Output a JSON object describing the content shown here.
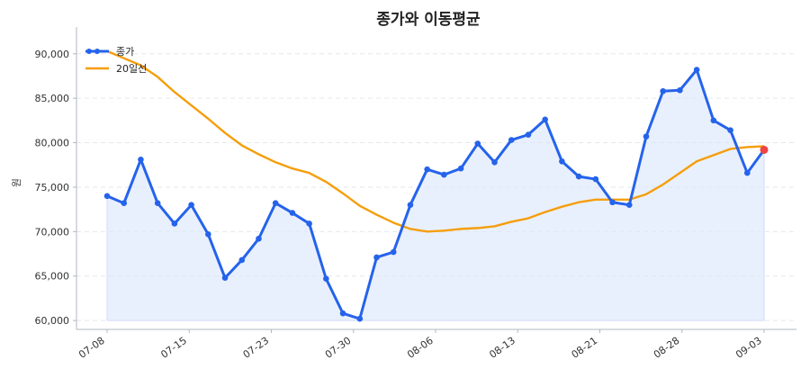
{
  "chart_data": {
    "type": "line",
    "title": "종가와 이동평균",
    "xlabel": "",
    "ylabel": "원",
    "ylim": [
      59000,
      92000
    ],
    "yticks": [
      "60,000",
      "65,000",
      "70,000",
      "75,000",
      "80,000",
      "85,000",
      "90,000"
    ],
    "xtick_labels": [
      "07-08",
      "07-15",
      "07-23",
      "07-30",
      "08-06",
      "08-13",
      "08-21",
      "08-28",
      "09-03"
    ],
    "grid": true,
    "legend_position": "top-left",
    "colors": {
      "close": "#2563eb",
      "ma20": "#f59e0b",
      "fill": "#dbe6fb",
      "last_point": "#ef4444",
      "grid": "#e5e7eb",
      "axis": "#b0b7c3"
    },
    "series": [
      {
        "name": "종가",
        "values": [
          74000,
          73200,
          78100,
          73200,
          70900,
          73000,
          69700,
          64800,
          66800,
          69200,
          73200,
          72100,
          70900,
          64700,
          60800,
          60200,
          67100,
          67700,
          73000,
          77000,
          76400,
          77100,
          79900,
          77800,
          80300,
          80900,
          82600,
          77900,
          76200,
          75900,
          73300,
          73000,
          80700,
          85800,
          85900,
          88200,
          82500,
          81400,
          76600,
          79200
        ]
      },
      {
        "name": "20일선",
        "values": [
          90300,
          89500,
          88700,
          87400,
          85700,
          84200,
          82700,
          81100,
          79700,
          78700,
          77800,
          77100,
          76600,
          75600,
          74300,
          72900,
          71900,
          71000,
          70300,
          70000,
          70100,
          70300,
          70400,
          70600,
          71100,
          71500,
          72200,
          72800,
          73300,
          73600,
          73600,
          73600,
          74200,
          75300,
          76600,
          77900,
          78600,
          79300,
          79500,
          79600
        ]
      }
    ]
  }
}
